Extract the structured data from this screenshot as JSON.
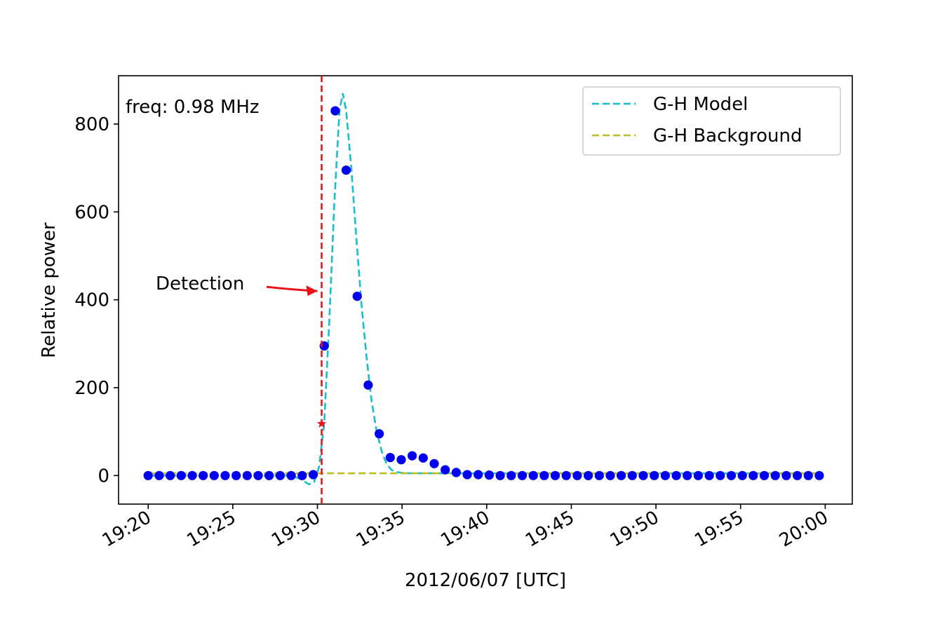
{
  "chart_data": {
    "type": "scatter",
    "xlabel": "2012/06/07 [UTC]",
    "ylabel": "Relative power",
    "annotation_freq": "freq: 0.98 MHz",
    "annotation_detection": "Detection",
    "x_tick_labels": [
      "19:20",
      "19:25",
      "19:30",
      "19:35",
      "19:40",
      "19:45",
      "19:50",
      "19:55",
      "20:00"
    ],
    "x_tick_values_min": [
      0,
      5,
      10,
      15,
      20,
      25,
      30,
      35,
      40
    ],
    "y_ticks": [
      0,
      200,
      400,
      600,
      800
    ],
    "xlim_min": [
      -1.75,
      41.6
    ],
    "ylim": [
      -65,
      910
    ],
    "grid": false,
    "legend_position": "top-right",
    "detection_time_min": 10.25,
    "detection_point": {
      "x_min": 10.25,
      "y": 118
    },
    "detection_arrow_y": 420,
    "colors": {
      "data": "#0000ee",
      "model": "#17becf",
      "background": "#bcbd22",
      "detection": "#e8141a",
      "axis": "#000000"
    },
    "series": [
      {
        "name": "G-H Model",
        "style": "dashed",
        "color": "#17becf",
        "x_min": [
          0.0,
          8.5,
          9.0,
          9.5,
          9.8,
          10.1,
          10.4,
          10.7,
          11.0,
          11.3,
          11.5,
          11.7,
          12.0,
          12.3,
          12.6,
          12.9,
          13.2,
          13.5,
          13.8,
          14.1,
          14.4,
          14.7,
          15.0,
          15.5,
          16.0,
          17.0,
          18.0,
          39.8
        ],
        "y": [
          0,
          0,
          -8,
          -20,
          -15,
          20,
          120,
          350,
          620,
          830,
          870,
          830,
          700,
          540,
          390,
          270,
          170,
          100,
          55,
          25,
          12,
          8,
          6,
          5,
          5,
          5,
          5,
          5
        ]
      },
      {
        "name": "G-H Background",
        "style": "dashed",
        "color": "#bcbd22",
        "x_min": [
          0.0,
          39.8
        ],
        "y": [
          5,
          5
        ]
      },
      {
        "name": "",
        "style": "markers",
        "color": "#0000ee",
        "x_min": [
          0.0,
          0.65,
          1.3,
          1.95,
          2.6,
          3.25,
          3.9,
          4.55,
          5.2,
          5.85,
          6.5,
          7.15,
          7.8,
          8.45,
          9.1,
          9.75,
          10.4,
          11.05,
          11.7,
          12.35,
          13.0,
          13.65,
          14.3,
          14.95,
          15.6,
          16.25,
          16.9,
          17.55,
          18.2,
          18.85,
          19.5,
          20.15,
          20.8,
          21.45,
          22.1,
          22.75,
          23.4,
          24.05,
          24.7,
          25.35,
          26.0,
          26.65,
          27.3,
          27.95,
          28.6,
          29.25,
          29.9,
          30.55,
          31.2,
          31.85,
          32.5,
          33.15,
          33.8,
          34.45,
          35.1,
          35.75,
          36.4,
          37.05,
          37.7,
          38.35,
          39.0,
          39.65
        ],
        "y": [
          0,
          0,
          0,
          0,
          0,
          0,
          0,
          0,
          0,
          0,
          0,
          0,
          0,
          0,
          0,
          2,
          295,
          830,
          695,
          408,
          206,
          95,
          41,
          36,
          45,
          40,
          27,
          13,
          7,
          2,
          2,
          1,
          0,
          0,
          0,
          0,
          0,
          0,
          0,
          0,
          0,
          0,
          0,
          0,
          0,
          0,
          0,
          0,
          0,
          0,
          0,
          0,
          0,
          0,
          0,
          0,
          0,
          0,
          0,
          0,
          0,
          0
        ]
      }
    ],
    "legend": [
      {
        "label": "G-H Model",
        "color": "#17becf"
      },
      {
        "label": "G-H Background",
        "color": "#bcbd22"
      }
    ]
  }
}
